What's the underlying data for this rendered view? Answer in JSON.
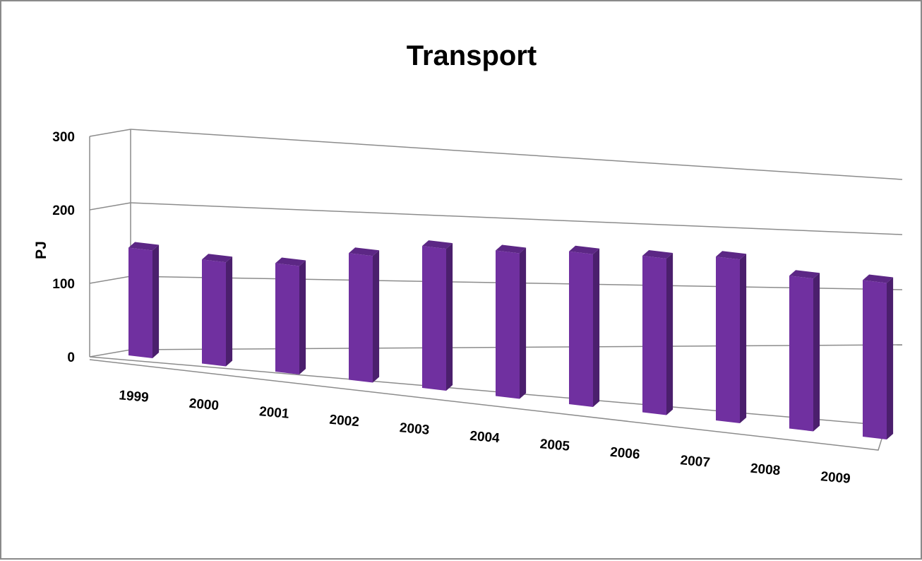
{
  "chart_data": {
    "type": "bar",
    "title": "Transport",
    "xlabel": "",
    "ylabel": "PJ",
    "ylim": [
      0,
      300
    ],
    "yticks": [
      0,
      100,
      200,
      300
    ],
    "categories": [
      "1999",
      "2000",
      "2001",
      "2002",
      "2003",
      "2004",
      "2005",
      "2006",
      "2007",
      "2008",
      "2009"
    ],
    "values": [
      148,
      143,
      149,
      174,
      195,
      200,
      210,
      215,
      225,
      210,
      215
    ],
    "grid": true,
    "legend": "none",
    "colors": {
      "bar_front": "#7030a0",
      "bar_side": "#4b1f6d",
      "bar_top": "#5c2785"
    }
  }
}
